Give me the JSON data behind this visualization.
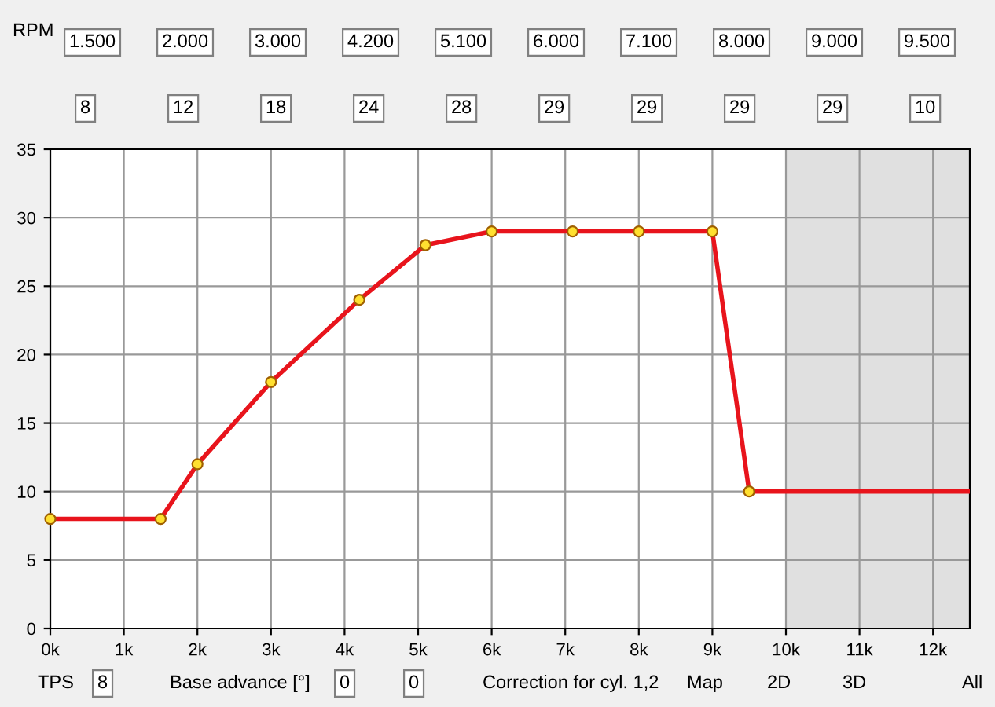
{
  "chart_data": {
    "type": "line",
    "x": [
      0,
      1.5,
      2,
      3,
      4.2,
      5.1,
      6,
      7.1,
      8,
      9,
      9.5,
      12.5
    ],
    "series": [
      {
        "color": "#e8141c",
        "marker": "none",
        "values": [
          8,
          8,
          12,
          18,
          24,
          28,
          29,
          29,
          29,
          29,
          10,
          10
        ]
      },
      {
        "type": "scatter",
        "color": "#ffe030",
        "marker": "circle",
        "x": [
          0,
          1.5,
          2,
          3,
          4.2,
          5.1,
          6,
          7.1,
          8,
          9,
          9.5
        ],
        "values": [
          8,
          8,
          12,
          18,
          24,
          28,
          29,
          29,
          29,
          29,
          10
        ]
      }
    ],
    "xlim": [
      0,
      12.5
    ],
    "ylim": [
      0,
      35
    ],
    "xticks": [
      {
        "value": 0,
        "label": "0k"
      },
      {
        "value": 1,
        "label": "1k"
      },
      {
        "value": 2,
        "label": "2k"
      },
      {
        "value": 3,
        "label": "3k"
      },
      {
        "value": 4,
        "label": "4k"
      },
      {
        "value": 5,
        "label": "5k"
      },
      {
        "value": 6,
        "label": "6k"
      },
      {
        "value": 7,
        "label": "7k"
      },
      {
        "value": 8,
        "label": "8k"
      },
      {
        "value": 9,
        "label": "9k"
      },
      {
        "value": 10,
        "label": "10k"
      },
      {
        "value": 11,
        "label": "11k"
      },
      {
        "value": 12,
        "label": "12k"
      }
    ],
    "yticks": [
      0,
      5,
      10,
      15,
      20,
      25,
      30,
      35
    ],
    "grid": true,
    "bands": [
      {
        "axis": "x",
        "from": 10,
        "to": 12.5,
        "color": "#e0e0e0"
      }
    ],
    "annotations": [
      "RPM",
      "1.500",
      "2.000",
      "3.000",
      "4.200",
      "5.100",
      "6.000",
      "7.100",
      "8.000",
      "9.000",
      "9.500",
      "8",
      "12",
      "18",
      "24",
      "28",
      "29",
      "29",
      "29",
      "29",
      "10",
      "TPS",
      "8",
      "Base advance [°]",
      "0",
      "0",
      "Correction for cyl. 1,2",
      "Map",
      "2D",
      "3D",
      "All"
    ]
  }
}
